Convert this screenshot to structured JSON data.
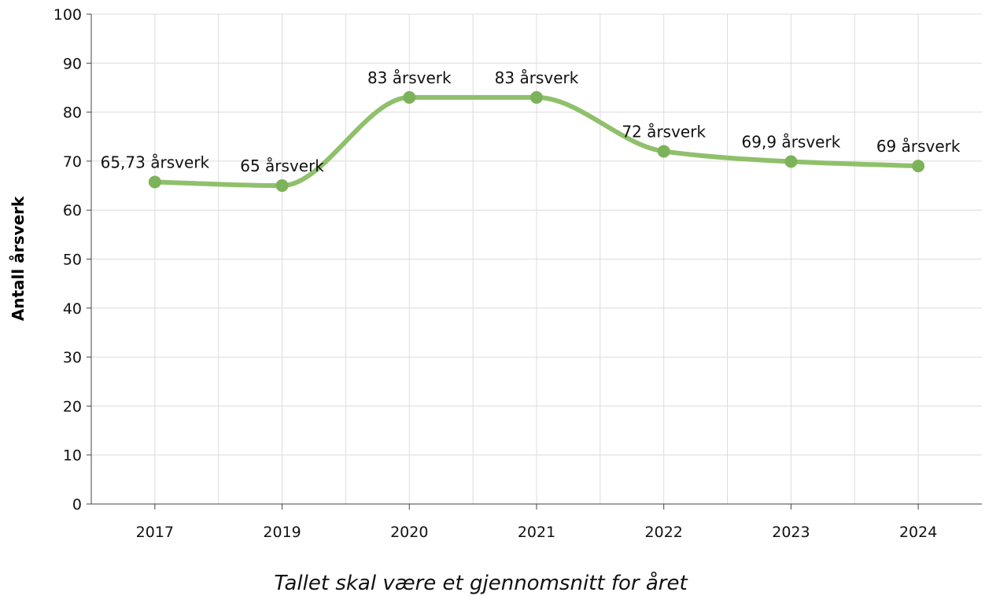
{
  "chart_data": {
    "type": "line",
    "title": "",
    "xlabel": "Tallet skal være et gjennomsnitt for året",
    "ylabel": "Antall årsverk",
    "categories": [
      "2017",
      "2019",
      "2020",
      "2021",
      "2022",
      "2023",
      "2024"
    ],
    "series": [
      {
        "values": [
          65.73,
          65,
          83,
          83,
          72,
          69.9,
          69
        ],
        "labels": [
          "65,73 årsverk",
          "65 årsverk",
          "83 årsverk",
          "83 årsverk",
          "72 årsverk",
          "69,9 årsverk",
          "69 årsverk"
        ],
        "color": "#8fc06b",
        "marker_color": "#7cb35a"
      }
    ],
    "ylim": [
      0,
      100
    ],
    "yticks": [
      0,
      10,
      20,
      30,
      40,
      50,
      60,
      70,
      80,
      90,
      100
    ],
    "grid": true,
    "smooth": true,
    "legend": "none"
  }
}
